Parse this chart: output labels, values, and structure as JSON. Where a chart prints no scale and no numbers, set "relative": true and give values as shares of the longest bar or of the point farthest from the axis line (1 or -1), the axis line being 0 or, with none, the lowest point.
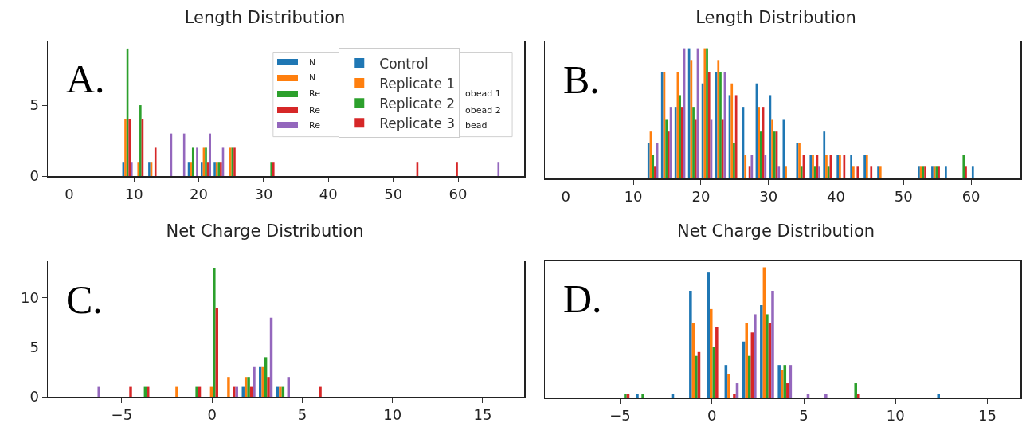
{
  "chart_data": [
    {
      "type": "bar",
      "title": "Length Distribution",
      "annotations": [
        "A.",
        "N",
        "N",
        "Re",
        "Re",
        "Re",
        "obead 1",
        "obead 2",
        "bead"
      ],
      "legend": "top right",
      "xlim": [
        -3.3,
        70.2
      ],
      "xticks": [
        0,
        10,
        20,
        30,
        40,
        50,
        60
      ],
      "ylim": [
        0,
        9.5
      ],
      "yticks": [
        0,
        5
      ],
      "series": [
        {
          "name": "Control",
          "color": "#1f77b4",
          "x": [
            9.0,
            13.0,
            19.1,
            21.1,
            23.1
          ],
          "values": [
            1,
            1,
            1,
            1,
            1
          ]
        },
        {
          "name": "Replicate 1",
          "color": "#ff7f0e",
          "x": [
            9.0,
            11.0,
            13.0,
            19.1,
            21.1,
            23.1,
            25.2
          ],
          "values": [
            4,
            1,
            1,
            1,
            2,
            1,
            2
          ]
        },
        {
          "name": "Replicate 2",
          "color": "#2ca02c",
          "x": [
            9.0,
            11.0,
            19.1,
            21.1,
            23.1,
            25.2,
            31.2
          ],
          "values": [
            9,
            5,
            2,
            2,
            1,
            2,
            1
          ]
        },
        {
          "name": "Replicate 3",
          "color": "#d62728",
          "x": [
            9.0,
            11.0,
            13.0,
            21.1,
            23.1,
            25.2,
            31.2,
            53.4,
            59.5
          ],
          "values": [
            4,
            4,
            2,
            1,
            1,
            2,
            1,
            1,
            1
          ]
        },
        {
          "color": "#9467bd",
          "x": [
            9.0,
            15.1,
            17.1,
            19.1,
            21.1,
            23.1,
            65.6
          ],
          "values": [
            1,
            3,
            3,
            2,
            3,
            2,
            1
          ]
        }
      ]
    },
    {
      "type": "bar",
      "title": "Length Distribution",
      "annotations": [
        "B."
      ],
      "relative": true,
      "xlim": [
        -3.1,
        67.3
      ],
      "xticks": [
        0,
        10,
        20,
        30,
        40,
        50,
        60
      ],
      "series": [
        {
          "color": "#1f77b4",
          "x": [
            12.9,
            14.9,
            16.9,
            18.9,
            20.9,
            22.9,
            24.9,
            26.9,
            28.9,
            30.9,
            32.9,
            34.9,
            36.9,
            38.9,
            40.9,
            42.9,
            44.9,
            46.9,
            52.9,
            54.9,
            56.9,
            60.9
          ],
          "values": [
            0.27,
            0.82,
            0.55,
            1,
            0.73,
            0.82,
            0.64,
            0.55,
            0.73,
            0.64,
            0.45,
            0.27,
            0.18,
            0.36,
            0.18,
            0.18,
            0.18,
            0.09,
            0.09,
            0.09,
            0.09,
            0.09
          ]
        },
        {
          "color": "#ff7f0e",
          "x": [
            12.9,
            14.9,
            16.9,
            18.9,
            20.9,
            22.9,
            24.9,
            26.9,
            28.9,
            30.9,
            32.9,
            34.9,
            36.9,
            38.9,
            40.9,
            42.9,
            44.9,
            46.9,
            52.9,
            54.9
          ],
          "values": [
            0.36,
            0.82,
            0.82,
            0.91,
            1,
            0.91,
            0.73,
            0.18,
            0.55,
            0.45,
            0.09,
            0.27,
            0.18,
            0.18,
            0.18,
            0.09,
            0.18,
            0.09,
            0.09,
            0.09
          ]
        },
        {
          "color": "#2ca02c",
          "x": [
            12.9,
            14.9,
            16.9,
            18.9,
            20.9,
            22.9,
            24.9,
            28.9,
            30.9,
            34.9,
            36.9,
            38.9,
            52.9,
            54.9,
            58.9
          ],
          "values": [
            0.18,
            0.45,
            0.64,
            0.55,
            1,
            0.82,
            0.27,
            0.36,
            0.36,
            0.09,
            0.09,
            0.09,
            0.09,
            0.09,
            0.18
          ]
        },
        {
          "color": "#d62728",
          "x": [
            12.9,
            14.9,
            16.9,
            18.9,
            20.9,
            22.9,
            24.9,
            26.9,
            28.9,
            30.9,
            34.9,
            36.9,
            38.9,
            40.9,
            42.9,
            44.9,
            52.9,
            54.9,
            58.9
          ],
          "values": [
            0.09,
            0.36,
            0.55,
            0.45,
            0.82,
            0.45,
            0.64,
            0.09,
            0.55,
            0.36,
            0.18,
            0.18,
            0.18,
            0.18,
            0.09,
            0.09,
            0.09,
            0.09,
            0.09
          ]
        },
        {
          "color": "#9467bd",
          "x": [
            12.9,
            14.9,
            16.9,
            18.9,
            20.9,
            22.9,
            26.9,
            28.9,
            30.9,
            36.9
          ],
          "values": [
            0.27,
            0.55,
            1,
            1,
            0.45,
            0.82,
            0.18,
            0.18,
            0.09,
            0.09
          ]
        }
      ]
    },
    {
      "type": "bar",
      "title": "Net Charge Distribution",
      "annotations": [
        "C."
      ],
      "xlim": [
        -9.1,
        17.3
      ],
      "xticks": [
        -5,
        0,
        5,
        10,
        15
      ],
      "ylim": [
        0,
        13.7
      ],
      "yticks": [
        0,
        5,
        10
      ],
      "series": [
        {
          "color": "#1f77b4",
          "x": [
            2.03,
            2.98,
            3.94
          ],
          "values": [
            1,
            3,
            1
          ]
        },
        {
          "color": "#ff7f0e",
          "x": [
            -1.8,
            0.12,
            1.07,
            2.03,
            2.98,
            3.94
          ],
          "values": [
            1,
            1,
            2,
            2,
            3,
            1
          ]
        },
        {
          "color": "#2ca02c",
          "x": [
            -3.7,
            -0.84,
            0.12,
            2.03,
            2.98,
            3.94
          ],
          "values": [
            1,
            1,
            13,
            2,
            4,
            1
          ]
        },
        {
          "color": "#d62728",
          "x": [
            -4.66,
            -3.7,
            -0.84,
            0.12,
            1.07,
            2.03,
            2.98,
            5.85
          ],
          "values": [
            1,
            1,
            1,
            9,
            1,
            1,
            2,
            1
          ]
        },
        {
          "color": "#9467bd",
          "x": [
            -6.57,
            1.07,
            2.03,
            2.98,
            3.94
          ],
          "values": [
            1,
            1,
            3,
            8,
            2
          ]
        }
      ]
    },
    {
      "type": "bar",
      "title": "Net Charge Distribution",
      "annotations": [
        "D."
      ],
      "relative": true,
      "xlim": [
        -9.1,
        16.8
      ],
      "xticks": [
        -5,
        0,
        5,
        10,
        15
      ],
      "series": [
        {
          "color": "#1f77b4",
          "x": [
            -3.76,
            -1.83,
            -0.86,
            0.11,
            1.07,
            2.04,
            3.0,
            3.97,
            12.65
          ],
          "values": [
            0.03,
            0.03,
            0.82,
            0.96,
            0.25,
            0.43,
            0.71,
            0.25,
            0.03
          ]
        },
        {
          "color": "#ff7f0e",
          "x": [
            -0.86,
            0.11,
            1.07,
            2.04,
            3.0,
            3.97
          ],
          "values": [
            0.57,
            0.68,
            0.18,
            0.57,
            1,
            0.21
          ]
        },
        {
          "color": "#2ca02c",
          "x": [
            -4.72,
            -3.76,
            -0.86,
            0.11,
            2.04,
            3.0,
            3.97,
            7.83
          ],
          "values": [
            0.03,
            0.03,
            0.32,
            0.39,
            0.32,
            0.64,
            0.25,
            0.11
          ]
        },
        {
          "color": "#d62728",
          "x": [
            -4.72,
            -0.86,
            0.11,
            1.07,
            2.04,
            3.0,
            3.97,
            7.83
          ],
          "values": [
            0.03,
            0.35,
            0.54,
            0.03,
            0.5,
            0.57,
            0.11,
            0.03
          ]
        },
        {
          "color": "#9467bd",
          "x": [
            1.07,
            2.04,
            3.0,
            3.97,
            4.93,
            5.9
          ],
          "values": [
            0.11,
            0.64,
            0.82,
            0.25,
            0.03,
            0.03
          ]
        }
      ]
    }
  ]
}
